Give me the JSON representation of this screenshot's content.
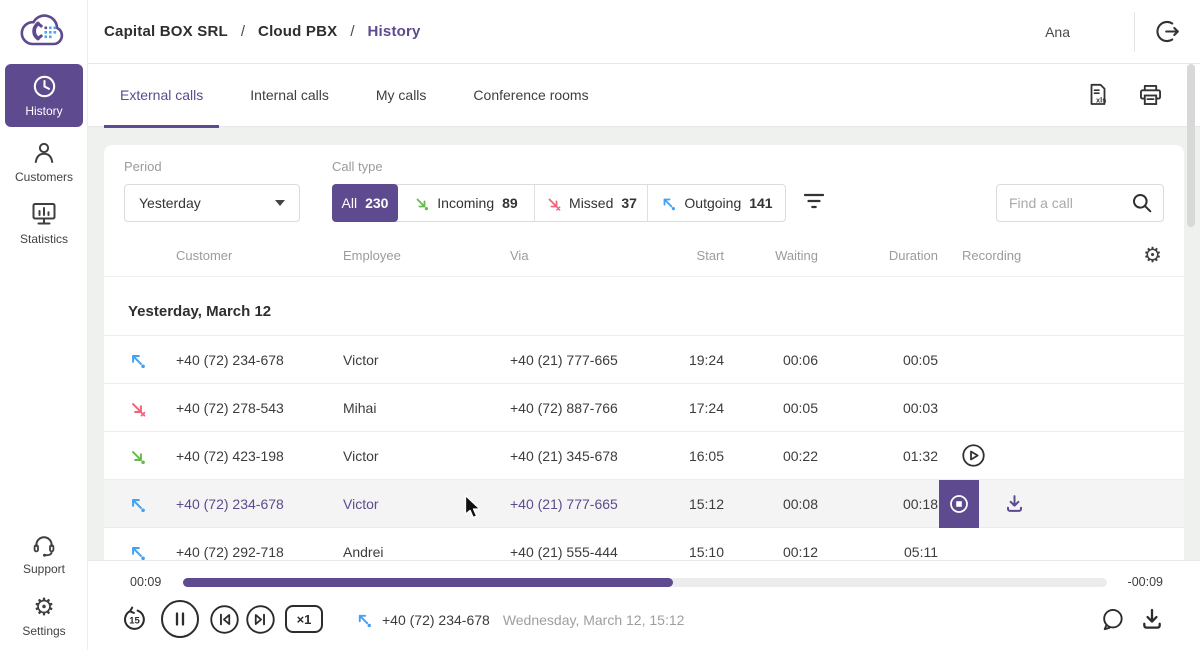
{
  "header": {
    "breadcrumb": [
      "Capital BOX SRL",
      "Cloud PBX",
      "History"
    ],
    "separator": "/",
    "user_name": "Ana"
  },
  "sidebar": {
    "items": [
      {
        "label": "History",
        "icon": "clock-icon",
        "active": true
      },
      {
        "label": "Customers",
        "icon": "person-icon",
        "active": false
      },
      {
        "label": "Statistics",
        "icon": "bar-chart-icon",
        "active": false
      }
    ],
    "footer_items": [
      {
        "label": "Support",
        "icon": "headset-icon"
      },
      {
        "label": "Settings",
        "icon": "gear-icon"
      }
    ]
  },
  "tabs": {
    "items": [
      {
        "label": "External calls",
        "active": true
      },
      {
        "label": "Internal calls",
        "active": false
      },
      {
        "label": "My calls",
        "active": false
      },
      {
        "label": "Conference rooms",
        "active": false
      }
    ]
  },
  "toolbar": {
    "xls_label": "xls"
  },
  "filters": {
    "period_label": "Period",
    "period_value": "Yesterday",
    "call_type_label": "Call type",
    "call_types": [
      {
        "label": "All",
        "count": "230",
        "active": true,
        "icon": "none"
      },
      {
        "label": "Incoming",
        "count": "89",
        "active": false,
        "icon": "incoming-arrow-icon"
      },
      {
        "label": "Missed",
        "count": "37",
        "active": false,
        "icon": "missed-arrow-icon"
      },
      {
        "label": "Outgoing",
        "count": "141",
        "active": false,
        "icon": "outgoing-arrow-icon"
      }
    ],
    "search_placeholder": "Find a call"
  },
  "table": {
    "columns": [
      "Customer",
      "Employee",
      "Via",
      "Start",
      "Waiting",
      "Duration",
      "Recording"
    ],
    "group_header": "Yesterday, March 12",
    "rows": [
      {
        "direction": "outgoing",
        "customer": "+40 (72) 234-678",
        "employee": "Victor",
        "via": "+40 (21) 777-665",
        "start": "19:24",
        "waiting": "00:06",
        "duration": "00:05",
        "recording": "none",
        "selected": false
      },
      {
        "direction": "missed",
        "customer": "+40 (72) 278-543",
        "employee": "Mihai",
        "via": "+40 (72) 887-766",
        "start": "17:24",
        "waiting": "00:05",
        "duration": "00:03",
        "recording": "none",
        "selected": false
      },
      {
        "direction": "incoming",
        "customer": "+40 (72) 423-198",
        "employee": "Victor",
        "via": "+40 (21) 345-678",
        "start": "16:05",
        "waiting": "00:22",
        "duration": "01:32",
        "recording": "play",
        "selected": false
      },
      {
        "direction": "outgoing",
        "customer": "+40 (72) 234-678",
        "employee": "Victor",
        "via": "+40 (21) 777-665",
        "start": "15:12",
        "waiting": "00:08",
        "duration": "00:18",
        "recording": "stop-and-download",
        "selected": true
      },
      {
        "direction": "outgoing",
        "customer": "+40 (72) 292-718",
        "employee": "Andrei",
        "via": "+40 (21) 555-444",
        "start": "15:10",
        "waiting": "00:12",
        "duration": "05:11",
        "recording": "none",
        "selected": false
      }
    ]
  },
  "player": {
    "elapsed": "00:09",
    "remaining": "-00:09",
    "progress_percent": 53,
    "rewind_label": "15",
    "speed_label": "×1",
    "call_direction": "outgoing",
    "call_number": "+40 (72) 234-678",
    "call_datetime": "Wednesday, March 12, 15:12"
  },
  "icons": {
    "gear_glyph": "⚙"
  },
  "colors": {
    "accent_purple": "#5e4a8e",
    "incoming_green": "#66bb4d",
    "missed_red": "#f2647a",
    "outgoing_blue": "#45a0f5",
    "background": "#eff1ef"
  }
}
